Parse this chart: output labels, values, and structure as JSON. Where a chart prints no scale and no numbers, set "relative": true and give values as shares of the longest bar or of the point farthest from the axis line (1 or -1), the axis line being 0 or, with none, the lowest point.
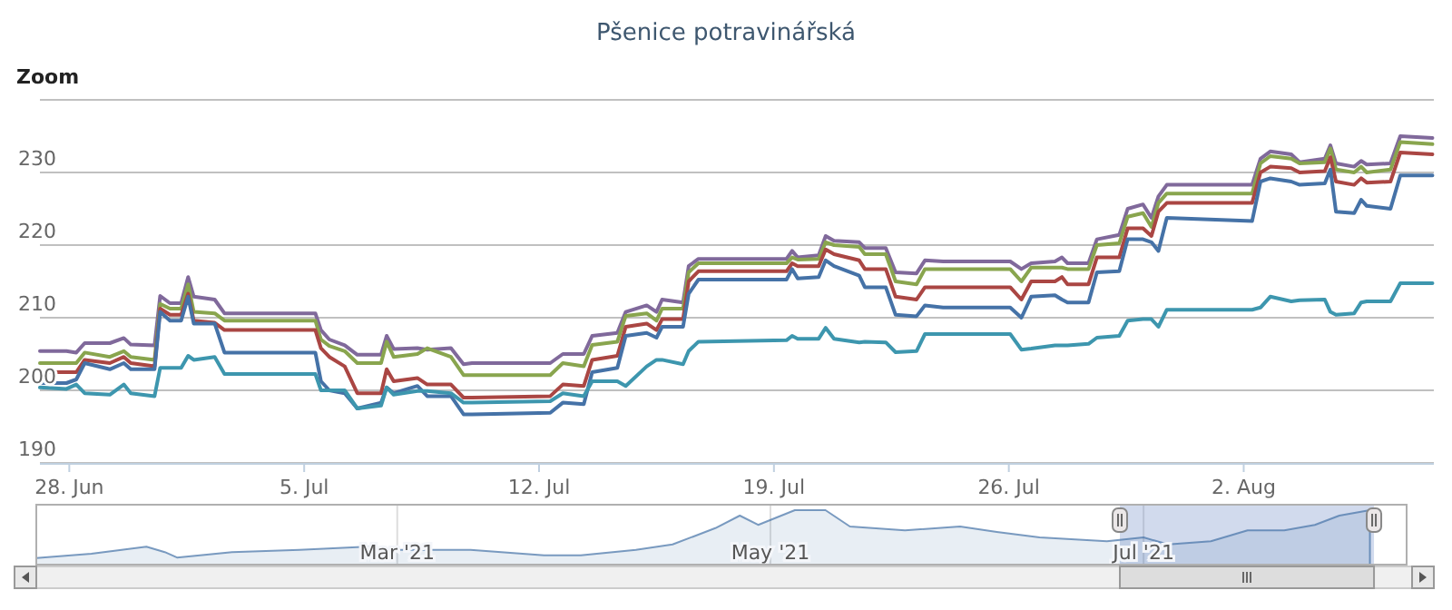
{
  "chart_data": [
    {
      "type": "line",
      "title": "Pšenice potravinářská",
      "annotations": [
        "Zoom"
      ],
      "grid": "y",
      "xlim": [
        "2021-06-27T03:00",
        "2021-08-07T16:00"
      ],
      "ylim": [
        190,
        240
      ],
      "xticks": [
        {
          "value": "2021-06-28",
          "label": "28. Jun"
        },
        {
          "value": "2021-07-05",
          "label": "5. Jul"
        },
        {
          "value": "2021-07-12",
          "label": "12. Jul"
        },
        {
          "value": "2021-07-19",
          "label": "19. Jul"
        },
        {
          "value": "2021-07-26",
          "label": "26. Jul"
        },
        {
          "value": "2021-08-02",
          "label": "2. Aug"
        }
      ],
      "yticks": [
        190,
        200,
        210,
        220,
        230,
        {
          "value": 240,
          "label": null
        }
      ],
      "x": [
        "2021-06-27T03:00",
        "2021-06-27T22:00",
        "2021-06-28T05:00",
        "2021-06-28T11:00",
        "2021-06-29T05:00",
        "2021-06-29T15:00",
        "2021-06-29T20:00",
        "2021-06-30T13:00",
        "2021-06-30T17:00",
        "2021-07-01T00:00",
        "2021-07-01T08:00",
        "2021-07-01T13:00",
        "2021-07-01T17:00",
        "2021-07-02T08:00",
        "2021-07-02T15:00",
        "2021-07-05T08:00",
        "2021-07-05T12:00",
        "2021-07-05T18:00",
        "2021-07-06T05:00",
        "2021-07-06T14:00",
        "2021-07-07T07:00",
        "2021-07-07T11:00",
        "2021-07-07T16:00",
        "2021-07-08T09:00",
        "2021-07-08T16:00",
        "2021-07-09T09:00",
        "2021-07-09T18:00",
        "2021-07-10T00:00",
        "2021-07-12T08:00",
        "2021-07-12T17:00",
        "2021-07-13T08:00",
        "2021-07-13T14:00",
        "2021-07-14T08:00",
        "2021-07-14T14:00",
        "2021-07-15T05:00",
        "2021-07-15T12:00",
        "2021-07-15T16:00",
        "2021-07-16T07:00",
        "2021-07-16T11:00",
        "2021-07-16T18:00",
        "2021-07-19T09:00",
        "2021-07-19T13:00",
        "2021-07-19T17:00",
        "2021-07-20T08:00",
        "2021-07-20T13:00",
        "2021-07-20T19:00",
        "2021-07-21T13:00",
        "2021-07-21T17:00",
        "2021-07-22T08:00",
        "2021-07-22T15:00",
        "2021-07-23T06:00",
        "2021-07-23T12:00",
        "2021-07-24T01:00",
        "2021-07-26T01:00",
        "2021-07-26T09:00",
        "2021-07-26T16:00",
        "2021-07-27T09:00",
        "2021-07-27T14:00",
        "2021-07-27T18:00",
        "2021-07-28T09:00",
        "2021-07-28T15:00",
        "2021-07-29T07:00",
        "2021-07-29T13:00",
        "2021-07-30T00:00",
        "2021-07-30T06:00",
        "2021-07-30T11:00",
        "2021-07-30T17:00",
        "2021-08-02T06:00",
        "2021-08-02T12:00",
        "2021-08-02T19:00",
        "2021-08-03T10:00",
        "2021-08-03T16:00",
        "2021-08-04T10:00",
        "2021-08-04T14:00",
        "2021-08-04T18:00",
        "2021-08-05T07:00",
        "2021-08-05T12:00",
        "2021-08-05T16:00",
        "2021-08-06T09:00",
        "2021-08-06T16:00",
        "2021-08-07T15:00"
      ],
      "series": [
        {
          "color": "#80699b",
          "values": [
            205.4,
            205.4,
            205.2,
            206.5,
            206.5,
            207.2,
            206.3,
            206.2,
            213,
            212,
            212,
            215.6,
            212.9,
            212.5,
            210.6,
            210.6,
            208.3,
            207,
            206.2,
            204.9,
            204.9,
            207.5,
            205.7,
            205.8,
            205.6,
            205.8,
            203.6,
            203.75,
            203.75,
            205,
            205,
            207.5,
            207.9,
            210.8,
            211.7,
            210.8,
            212.5,
            212.1,
            217.1,
            218.1,
            218.1,
            219.2,
            218.3,
            218.6,
            221.25,
            220.6,
            220.4,
            219.6,
            219.6,
            216.25,
            216.1,
            217.9,
            217.75,
            217.75,
            216.7,
            217.5,
            217.75,
            218.3,
            217.5,
            217.5,
            220.8,
            221.4,
            225,
            225.6,
            223.75,
            226.7,
            228.3,
            228.3,
            231.9,
            232.9,
            232.5,
            231.4,
            231.9,
            233.75,
            231.25,
            230.8,
            231.6,
            231.1,
            231.25,
            235,
            234.75
          ]
        },
        {
          "color": "#89a54e",
          "values": [
            203.75,
            203.75,
            203.75,
            205.2,
            204.6,
            205.4,
            204.6,
            204.2,
            211.9,
            211.25,
            211.25,
            214.6,
            210.8,
            210.6,
            209.6,
            209.6,
            207,
            206.1,
            205.4,
            203.75,
            203.75,
            206.7,
            204.6,
            205,
            205.8,
            204.6,
            202.1,
            202.1,
            202.1,
            203.75,
            203.3,
            206.25,
            206.7,
            210.25,
            210.6,
            209.6,
            211.25,
            211.25,
            216.25,
            217.5,
            217.5,
            218.3,
            218,
            218.1,
            220.4,
            220,
            219.75,
            218.75,
            218.75,
            215,
            214.6,
            216.7,
            216.7,
            216.7,
            215,
            216.9,
            216.9,
            216.9,
            216.7,
            216.7,
            220,
            220.25,
            223.9,
            224.4,
            222.5,
            225.8,
            227.1,
            227.1,
            231.25,
            232.25,
            231.9,
            231.25,
            231.4,
            233.3,
            230.4,
            230,
            230.8,
            230,
            230.4,
            234.2,
            233.9
          ]
        },
        {
          "color": "#aa4643",
          "values": [
            202.5,
            202.5,
            202.5,
            204.2,
            203.75,
            204.6,
            203.75,
            203.3,
            211.25,
            210.4,
            210.4,
            213.3,
            209.6,
            209.3,
            208.3,
            208.3,
            205.8,
            204.6,
            203.3,
            199.6,
            199.6,
            202.9,
            201.25,
            201.7,
            200.8,
            200.8,
            199,
            199,
            199.2,
            200.8,
            200.6,
            204.2,
            204.75,
            208.75,
            209.2,
            208.3,
            209.8,
            209.8,
            215,
            216.4,
            216.4,
            217.5,
            217.1,
            217.1,
            219.4,
            218.75,
            217.9,
            216.7,
            216.7,
            212.9,
            212.5,
            214.2,
            214.2,
            214.2,
            212.5,
            215,
            215,
            215.6,
            214.6,
            214.6,
            218.3,
            218.3,
            222.3,
            222.3,
            221.25,
            224.6,
            225.8,
            225.8,
            230,
            230.8,
            230.6,
            230,
            230.2,
            232.1,
            228.75,
            228.3,
            229.2,
            228.6,
            228.75,
            232.75,
            232.5
          ]
        },
        {
          "color": "#4572a7",
          "values": [
            201,
            201,
            201.5,
            203.75,
            202.9,
            203.75,
            202.9,
            202.9,
            210.8,
            209.6,
            209.6,
            212.9,
            209.2,
            209.2,
            205.2,
            205.2,
            201.25,
            200,
            199.6,
            197.5,
            198.3,
            200.4,
            199.6,
            200.6,
            199.2,
            199.2,
            196.7,
            196.7,
            196.9,
            198.3,
            198.1,
            202.5,
            203.1,
            207.5,
            207.9,
            207.25,
            208.75,
            208.75,
            213.3,
            215.25,
            215.25,
            216.7,
            215.4,
            215.6,
            217.9,
            217.1,
            215.8,
            214.2,
            214.2,
            210.4,
            210.2,
            211.7,
            211.4,
            211.4,
            210,
            212.9,
            213.1,
            212.5,
            212.1,
            212.1,
            216.25,
            216.4,
            220.8,
            220.8,
            220.4,
            219.2,
            223.75,
            223.3,
            228.75,
            229.2,
            228.75,
            228.3,
            228.5,
            230.4,
            224.6,
            224.4,
            226.25,
            225.4,
            225,
            229.6,
            229.6
          ]
        },
        {
          "color": "#3d96ae",
          "values": [
            200.4,
            200.2,
            200.8,
            199.6,
            199.4,
            200.8,
            199.6,
            199.2,
            203.1,
            203.1,
            203.1,
            204.75,
            204.2,
            204.6,
            202.25,
            202.25,
            200,
            200,
            200,
            197.5,
            197.9,
            200.4,
            199.4,
            199.9,
            199.9,
            199.6,
            198.3,
            198.3,
            198.5,
            199.6,
            199.2,
            201.25,
            201.25,
            200.6,
            203.3,
            204.2,
            204.2,
            203.6,
            205.4,
            206.7,
            206.9,
            207.5,
            207.1,
            207.1,
            208.6,
            207.1,
            206.6,
            206.7,
            206.6,
            205.25,
            205.4,
            207.75,
            207.75,
            207.75,
            205.6,
            205.75,
            206.2,
            206.2,
            206.2,
            206.4,
            207.25,
            207.5,
            209.6,
            209.8,
            209.8,
            208.75,
            211.1,
            211.1,
            211.4,
            212.9,
            212.25,
            212.4,
            212.5,
            210.8,
            210.4,
            210.6,
            212.1,
            212.25,
            212.25,
            214.75,
            214.75
          ]
        }
      ]
    },
    {
      "type": "area",
      "relative": true,
      "grid": "x",
      "xlim": [
        "2021-01-01",
        "2021-08-13"
      ],
      "xticks": [
        {
          "value": "2021-03-01",
          "label": "Mar '21"
        },
        {
          "value": "2021-05-01",
          "label": "May '21"
        },
        {
          "value": "2021-07-01",
          "label": "Jul '21"
        }
      ],
      "bands": [
        {
          "axis": "x",
          "from": "2021-06-27T03:00",
          "to": "2021-08-07T16:00",
          "color": "#6685c2"
        }
      ],
      "x": [
        "2021-01-01",
        "2021-01-10",
        "2021-01-19",
        "2021-01-22",
        "2021-01-24",
        "2021-02-02",
        "2021-02-13",
        "2021-02-24",
        "2021-03-01",
        "2021-03-13",
        "2021-03-25",
        "2021-03-31",
        "2021-04-09",
        "2021-04-15",
        "2021-04-22",
        "2021-04-26",
        "2021-04-29",
        "2021-05-05",
        "2021-05-10",
        "2021-05-14",
        "2021-05-23",
        "2021-06-01",
        "2021-06-07",
        "2021-06-14",
        "2021-06-25",
        "2021-07-01",
        "2021-07-05",
        "2021-07-12",
        "2021-07-18",
        "2021-07-24",
        "2021-07-29",
        "2021-08-02",
        "2021-08-07"
      ],
      "series": [
        {
          "color": "#4572a7",
          "values": [
            0.12,
            0.2,
            0.33,
            0.23,
            0.13,
            0.23,
            0.27,
            0.33,
            0.27,
            0.27,
            0.17,
            0.17,
            0.27,
            0.37,
            0.67,
            0.9,
            0.73,
            1.0,
            1.0,
            0.7,
            0.63,
            0.7,
            0.6,
            0.5,
            0.43,
            0.5,
            0.37,
            0.43,
            0.63,
            0.63,
            0.73,
            0.9,
            1.0
          ]
        }
      ]
    }
  ]
}
